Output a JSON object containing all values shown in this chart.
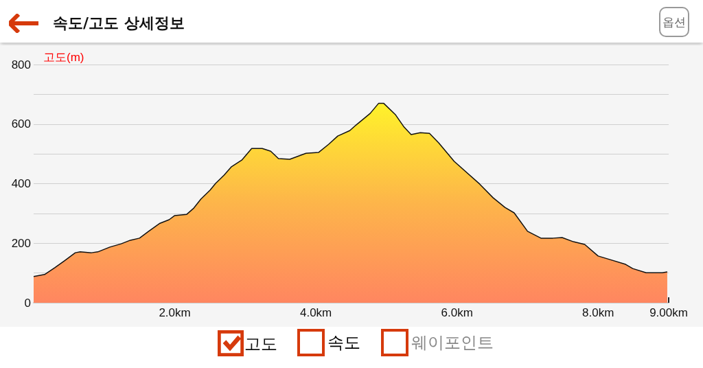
{
  "chart_data": {
    "type": "area",
    "title": "속도/고도 상세정보",
    "ylabel": "고도(m)",
    "annotations": [
      "옵션",
      "속도",
      "웨이포인트"
    ],
    "x": [
      0,
      0.155,
      0.3,
      0.43,
      0.59,
      0.66,
      0.82,
      0.91,
      1.08,
      1.24,
      1.37,
      1.5,
      1.63,
      1.79,
      1.92,
      2.0,
      2.17,
      2.27,
      2.37,
      2.5,
      2.58,
      2.7,
      2.8,
      2.95,
      3.09,
      3.24,
      3.36,
      3.47,
      3.63,
      3.86,
      4.04,
      4.18,
      4.31,
      4.48,
      4.57,
      4.77,
      4.89,
      4.96,
      5.13,
      5.25,
      5.35,
      5.48,
      5.61,
      5.74,
      5.96,
      6.32,
      6.51,
      6.68,
      6.81,
      7.0,
      7.19,
      7.36,
      7.49,
      7.65,
      7.81,
      8.0,
      8.17,
      8.39,
      8.49,
      8.68,
      8.91,
      8.98
    ],
    "series": [
      {
        "name": "고도",
        "color": "#fdb54a",
        "values": [
          88,
          95,
          118,
          140,
          168,
          171,
          168,
          171,
          187,
          198,
          210,
          217,
          240,
          267,
          279,
          293,
          297,
          318,
          348,
          378,
          401,
          429,
          456,
          479,
          518,
          518,
          509,
          484,
          482,
          502,
          505,
          532,
          560,
          578,
          597,
          636,
          670,
          670,
          631,
          590,
          565,
          571,
          569,
          537,
          475,
          399,
          353,
          320,
          302,
          240,
          217,
          217,
          219,
          205,
          196,
          157,
          145,
          129,
          115,
          101,
          101,
          104
        ]
      }
    ],
    "xlim": [
      0,
      9.0
    ],
    "xticks": [
      {
        "value": 2,
        "label": "2.0km"
      },
      {
        "value": 4,
        "label": "4.0km"
      },
      {
        "value": 6,
        "label": "6.0km"
      },
      {
        "value": 8,
        "label": "8.0km"
      },
      {
        "value": 9,
        "label": "9.00km"
      }
    ],
    "ylim": [
      0,
      800
    ],
    "yticks": [
      0,
      {
        "value": 100,
        "label": null
      },
      200,
      {
        "value": 300,
        "label": null
      },
      400,
      {
        "value": 500,
        "label": null
      },
      600,
      {
        "value": 700,
        "label": null
      },
      800
    ],
    "grid": "y",
    "legend": "bottom",
    "marker": "none",
    "line_style": "solid"
  }
}
